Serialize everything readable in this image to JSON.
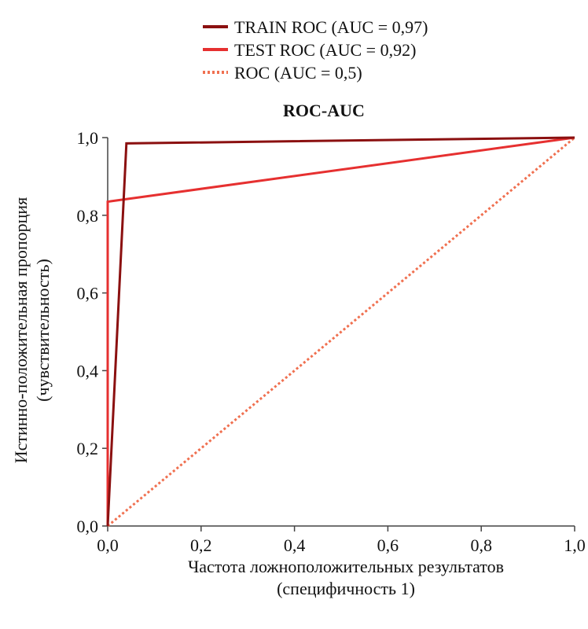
{
  "chart_data": {
    "type": "line",
    "title": "ROC-AUC",
    "xlabel": [
      "Частота ложноположительных результатов",
      "(специфичность 1)"
    ],
    "ylabel": [
      "Истинно-положительная пропорция",
      "(чувствительность)"
    ],
    "xlim": [
      0,
      1
    ],
    "ylim": [
      0,
      1
    ],
    "x_ticks": [
      0,
      0.2,
      0.4,
      0.6,
      0.8,
      1.0
    ],
    "y_ticks": [
      0,
      0.2,
      0.4,
      0.6,
      0.8,
      1.0
    ],
    "x_tick_labels": [
      "0,0",
      "0,2",
      "0,4",
      "0,6",
      "0,8",
      "1,0"
    ],
    "y_tick_labels": [
      "0,0",
      "0,2",
      "0,4",
      "0,6",
      "0,8",
      "1,0"
    ],
    "grid": false,
    "legend_position": "top",
    "series": [
      {
        "name": "TRAIN ROC (AUC = 0,97)",
        "color": "#8b1010",
        "style": "solid",
        "x": [
          0,
          0.04,
          1.0
        ],
        "y": [
          0,
          0.985,
          1.0
        ]
      },
      {
        "name": "TEST ROC (AUC = 0,92)",
        "color": "#e63030",
        "style": "solid",
        "x": [
          0,
          0,
          1.0
        ],
        "y": [
          0,
          0.835,
          1.0
        ]
      },
      {
        "name": "ROC (AUC = 0,5)",
        "color": "#f07050",
        "style": "dotted",
        "x": [
          0,
          1.0
        ],
        "y": [
          0,
          1.0
        ]
      }
    ]
  }
}
